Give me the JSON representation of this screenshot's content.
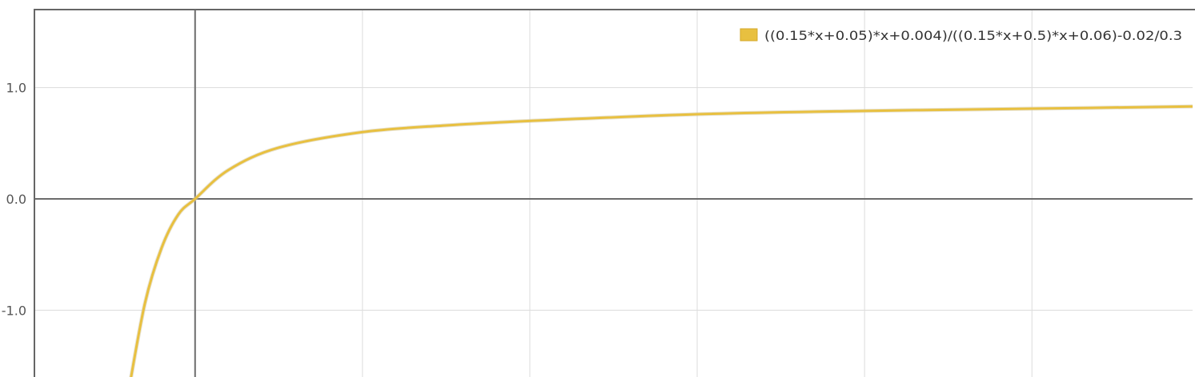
{
  "chart_data": {
    "type": "line",
    "title": "",
    "xlabel": "",
    "ylabel": "",
    "xlim": [
      -0.96,
      5.96
    ],
    "ylim": [
      -1.6,
      1.7
    ],
    "grid": true,
    "legend_position": "top-right",
    "y_ticks": [
      {
        "value": 1.0,
        "label": "1.0"
      },
      {
        "value": 0.0,
        "label": "0.0"
      },
      {
        "value": -1.0,
        "label": "-1.0"
      }
    ],
    "x_gridlines": [
      0,
      1,
      2,
      3,
      4,
      5
    ],
    "series": [
      {
        "name": "((0.15*x+0.05)*x+0.004)/((0.15*x+0.5)*x+0.06)-0.02/0.3",
        "color": "#e8c040",
        "x": [
          -0.4,
          -0.3,
          -0.2,
          -0.1,
          0,
          0.2,
          0.5,
          1,
          1.5,
          2,
          3,
          4,
          5,
          5.96
        ],
        "y": [
          -1.75,
          -0.94,
          -0.44,
          -0.14,
          0.0,
          0.26,
          0.46,
          0.6,
          0.66,
          0.7,
          0.76,
          0.79,
          0.81,
          0.83
        ]
      }
    ]
  }
}
